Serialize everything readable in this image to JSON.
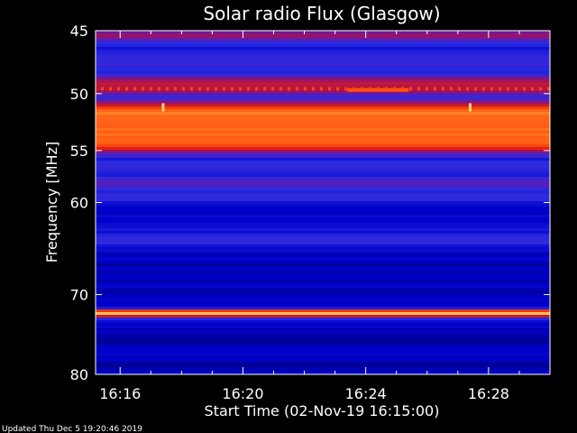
{
  "chart_data": {
    "type": "heatmap",
    "title": "Solar radio Flux (Glasgow)",
    "xlabel": "Start Time (02-Nov-19 16:15:00)",
    "ylabel": "Frequency [MHz]",
    "x_ticks": [
      "16:16",
      "16:20",
      "16:24",
      "16:28"
    ],
    "x_tick_minutes": [
      16.0,
      20.0,
      24.0,
      28.0
    ],
    "xlim_minutes": [
      15.2,
      30.0
    ],
    "y_ticks": [
      45,
      50,
      55,
      60,
      70,
      80
    ],
    "ylim": [
      45,
      80
    ],
    "y_scale": "log",
    "colormap": [
      "#000060",
      "#0000cc",
      "#2a2ae0",
      "#5020c0",
      "#a01060",
      "#e02010",
      "#ff5010",
      "#ffa030",
      "#ffffa0"
    ],
    "frequency_profile": [
      {
        "freq": 45.0,
        "level": 0.35
      },
      {
        "freq": 45.4,
        "level": 0.55
      },
      {
        "freq": 45.8,
        "level": 0.25
      },
      {
        "freq": 46.5,
        "level": 0.18
      },
      {
        "freq": 47.5,
        "level": 0.3
      },
      {
        "freq": 48.2,
        "level": 0.22
      },
      {
        "freq": 48.8,
        "level": 0.45
      },
      {
        "freq": 49.5,
        "level": 0.6
      },
      {
        "freq": 50.3,
        "level": 0.3
      },
      {
        "freq": 50.9,
        "level": 0.5
      },
      {
        "freq": 51.3,
        "level": 0.78
      },
      {
        "freq": 52.0,
        "level": 0.82
      },
      {
        "freq": 53.0,
        "level": 0.76
      },
      {
        "freq": 54.0,
        "level": 0.8
      },
      {
        "freq": 54.8,
        "level": 0.65
      },
      {
        "freq": 55.3,
        "level": 0.35
      },
      {
        "freq": 55.8,
        "level": 0.22
      },
      {
        "freq": 56.5,
        "level": 0.3
      },
      {
        "freq": 57.2,
        "level": 0.18
      },
      {
        "freq": 58.0,
        "level": 0.42
      },
      {
        "freq": 58.7,
        "level": 0.25
      },
      {
        "freq": 59.4,
        "level": 0.3
      },
      {
        "freq": 60.5,
        "level": 0.14
      },
      {
        "freq": 62.0,
        "level": 0.12
      },
      {
        "freq": 64.0,
        "level": 0.28
      },
      {
        "freq": 65.0,
        "level": 0.12
      },
      {
        "freq": 67.0,
        "level": 0.1
      },
      {
        "freq": 70.0,
        "level": 0.1
      },
      {
        "freq": 71.5,
        "level": 0.12
      },
      {
        "freq": 72.2,
        "level": 1.0
      },
      {
        "freq": 73.0,
        "level": 0.14
      },
      {
        "freq": 75.0,
        "level": 0.09
      },
      {
        "freq": 78.0,
        "level": 0.1
      },
      {
        "freq": 80.0,
        "level": 0.1
      }
    ],
    "features": [
      {
        "kind": "periodic_bursts",
        "freq": 49.6,
        "level": 0.72
      },
      {
        "kind": "burst",
        "freq": 49.7,
        "start_minute": 23.4,
        "end_minute": 25.4,
        "level": 0.75
      },
      {
        "kind": "spike",
        "freq": 51.2,
        "minute": 17.4,
        "level": 0.95
      },
      {
        "kind": "spike",
        "freq": 51.2,
        "minute": 27.4,
        "level": 0.95
      }
    ]
  },
  "footer": {
    "updated": "Updated Thu Dec  5 19:20:46 2019"
  }
}
